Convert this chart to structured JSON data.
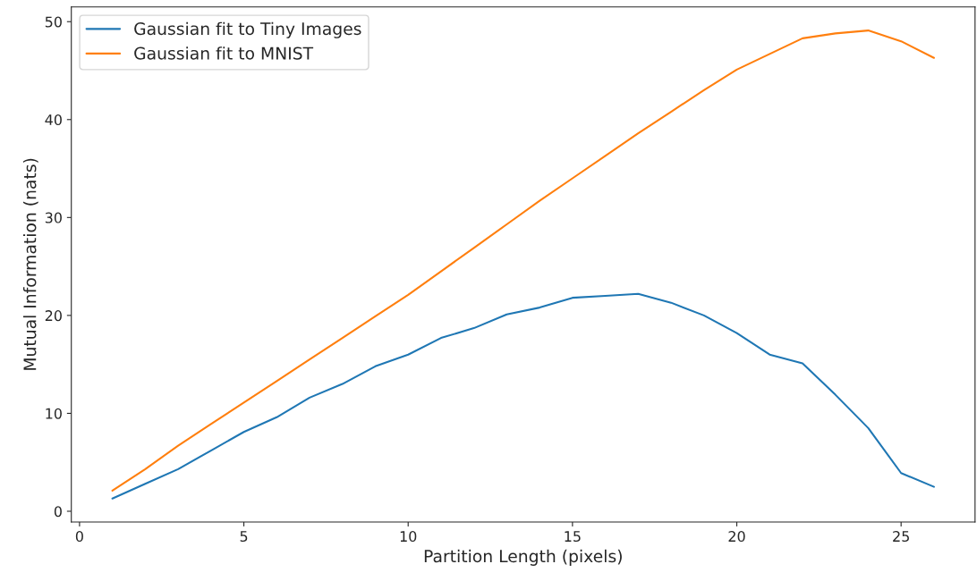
{
  "chart_data": {
    "type": "line",
    "xlabel": "Partition Length (pixels)",
    "ylabel": "Mutual Information (nats)",
    "x": [
      1,
      2,
      3,
      4,
      5,
      6,
      7,
      8,
      9,
      10,
      11,
      12,
      13,
      14,
      15,
      16,
      17,
      18,
      19,
      20,
      21,
      22,
      23,
      24,
      25,
      26
    ],
    "series": [
      {
        "name": "Gaussian fit to Tiny Images",
        "color": "#1f77b4",
        "values": [
          1.3,
          2.8,
          4.3,
          6.2,
          8.1,
          9.6,
          11.6,
          13.0,
          14.8,
          16.0,
          17.7,
          18.7,
          20.1,
          20.8,
          21.8,
          22.0,
          22.2,
          21.3,
          20.0,
          18.2,
          16.0,
          15.1,
          11.9,
          8.5,
          3.9,
          2.5
        ]
      },
      {
        "name": "Gaussian fit to MNIST",
        "color": "#ff7f0e",
        "values": [
          2.1,
          4.3,
          6.7,
          8.9,
          11.1,
          13.3,
          15.5,
          17.7,
          19.9,
          22.1,
          24.5,
          26.9,
          29.3,
          31.7,
          34.0,
          36.3,
          38.6,
          40.8,
          43.0,
          45.1,
          46.7,
          48.3,
          48.8,
          49.1,
          48.0,
          46.3
        ]
      }
    ],
    "xlim": [
      -0.25,
      27.25
    ],
    "xticks": [
      0,
      5,
      10,
      15,
      20,
      25
    ],
    "ylim": [
      -1.1,
      51.5
    ],
    "yticks": [
      0,
      10,
      20,
      30,
      40,
      50
    ],
    "grid": false,
    "legend": "top left",
    "marker": "none",
    "line_style": "solid"
  }
}
